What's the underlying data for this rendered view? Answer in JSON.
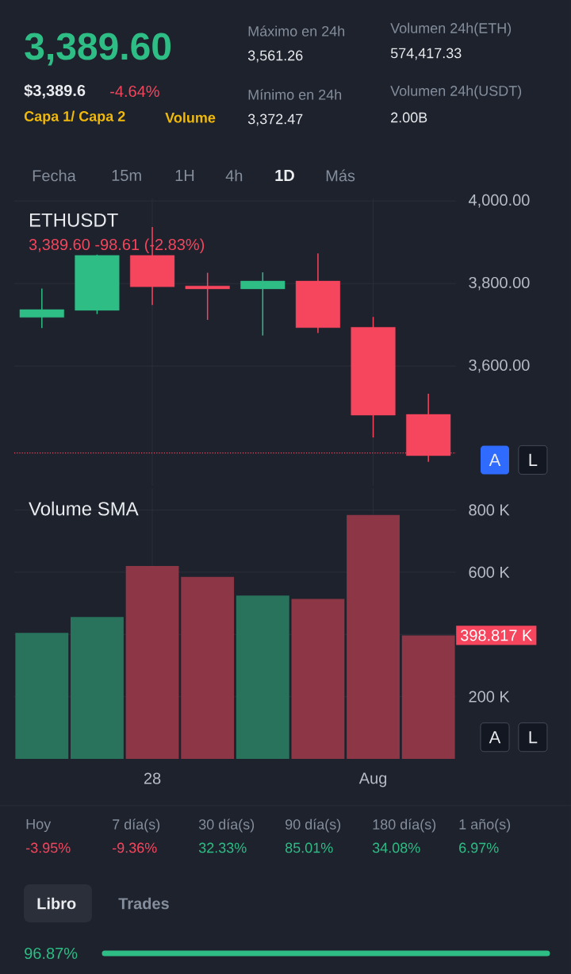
{
  "chart_data": [
    {
      "type": "other",
      "annotations": [
        "3,389.60",
        "$3,389.6",
        "-4.64%",
        "Capa 1/ Capa 2",
        "Volume",
        "Máximo en 24h",
        "3,561.26",
        "Mínimo en 24h",
        "3,372.47",
        "Volumen 24h(ETH)",
        "574,417.33",
        "Volumen 24h(USDT)",
        "2.00B",
        "Fecha",
        "15m",
        "1H",
        "4h",
        "1D",
        "Más"
      ]
    },
    {
      "type": "candlestick",
      "title": "ETHUSDT",
      "subtitle": "3,389.60 -98.61 (-2.83%)",
      "categories": [
        null,
        null,
        null,
        null,
        null,
        null,
        null,
        null
      ],
      "ohlc": [
        [
          3718,
          3788,
          3692,
          3737
        ],
        [
          3735,
          3870,
          3726,
          3868
        ],
        [
          3868,
          3937,
          3748,
          3792
        ],
        [
          3794,
          3826,
          3712,
          3787
        ],
        [
          3787,
          3827,
          3674,
          3806
        ],
        [
          3806,
          3873,
          3680,
          3693
        ],
        [
          3694,
          3719,
          3427,
          3481
        ],
        [
          3483,
          3533,
          3368,
          3383
        ]
      ],
      "colors": [
        "#2ebd85",
        "#2ebd85",
        "#f6465d",
        "#f6465d",
        "#2ebd85",
        "#f6465d",
        "#f6465d",
        "#f6465d"
      ],
      "ylim": [
        3310,
        4006
      ],
      "yticks": [
        {
          "value": 3600,
          "label": "3,600.00"
        },
        {
          "value": 3800,
          "label": "3,800.00"
        },
        {
          "value": 4000,
          "label": "4,000.00"
        }
      ],
      "ref_lines": [
        {
          "axis": "y",
          "value": 3389.6,
          "color": "#f6465d",
          "line_style": "dotted"
        }
      ],
      "grid": true,
      "tick_labels": "y",
      "annotations": [
        "A",
        "L"
      ]
    },
    {
      "type": "bar",
      "title": "Volume SMA",
      "categories": [
        null,
        null,
        "28",
        null,
        null,
        null,
        "Aug",
        null
      ],
      "values": [
        405,
        456,
        620,
        585,
        525,
        514,
        784,
        397
      ],
      "colors": [
        "#29735c",
        "#29735c",
        "#8c3646",
        "#8c3646",
        "#29735c",
        "#8c3646",
        "#8c3646",
        "#8c3646"
      ],
      "ylim": [
        0,
        870
      ],
      "yticks": [
        {
          "value": 200,
          "label": "200 K"
        },
        {
          "value": 400,
          "label": null
        },
        {
          "value": 600,
          "label": "600 K"
        },
        {
          "value": 800,
          "label": "800 K"
        }
      ],
      "grid": true,
      "annotations": [
        "398.817 K",
        "A",
        "L"
      ]
    },
    {
      "type": "other",
      "annotations": [
        "Hoy",
        "-3.95%",
        "7 día(s)",
        "-9.36%",
        "30 día(s)",
        "32.33%",
        "90 día(s)",
        "85.01%",
        "180 día(s)",
        "34.08%",
        "1 año(s)",
        "6.97%",
        "Libro",
        "Trades",
        "96.87%"
      ]
    }
  ]
}
